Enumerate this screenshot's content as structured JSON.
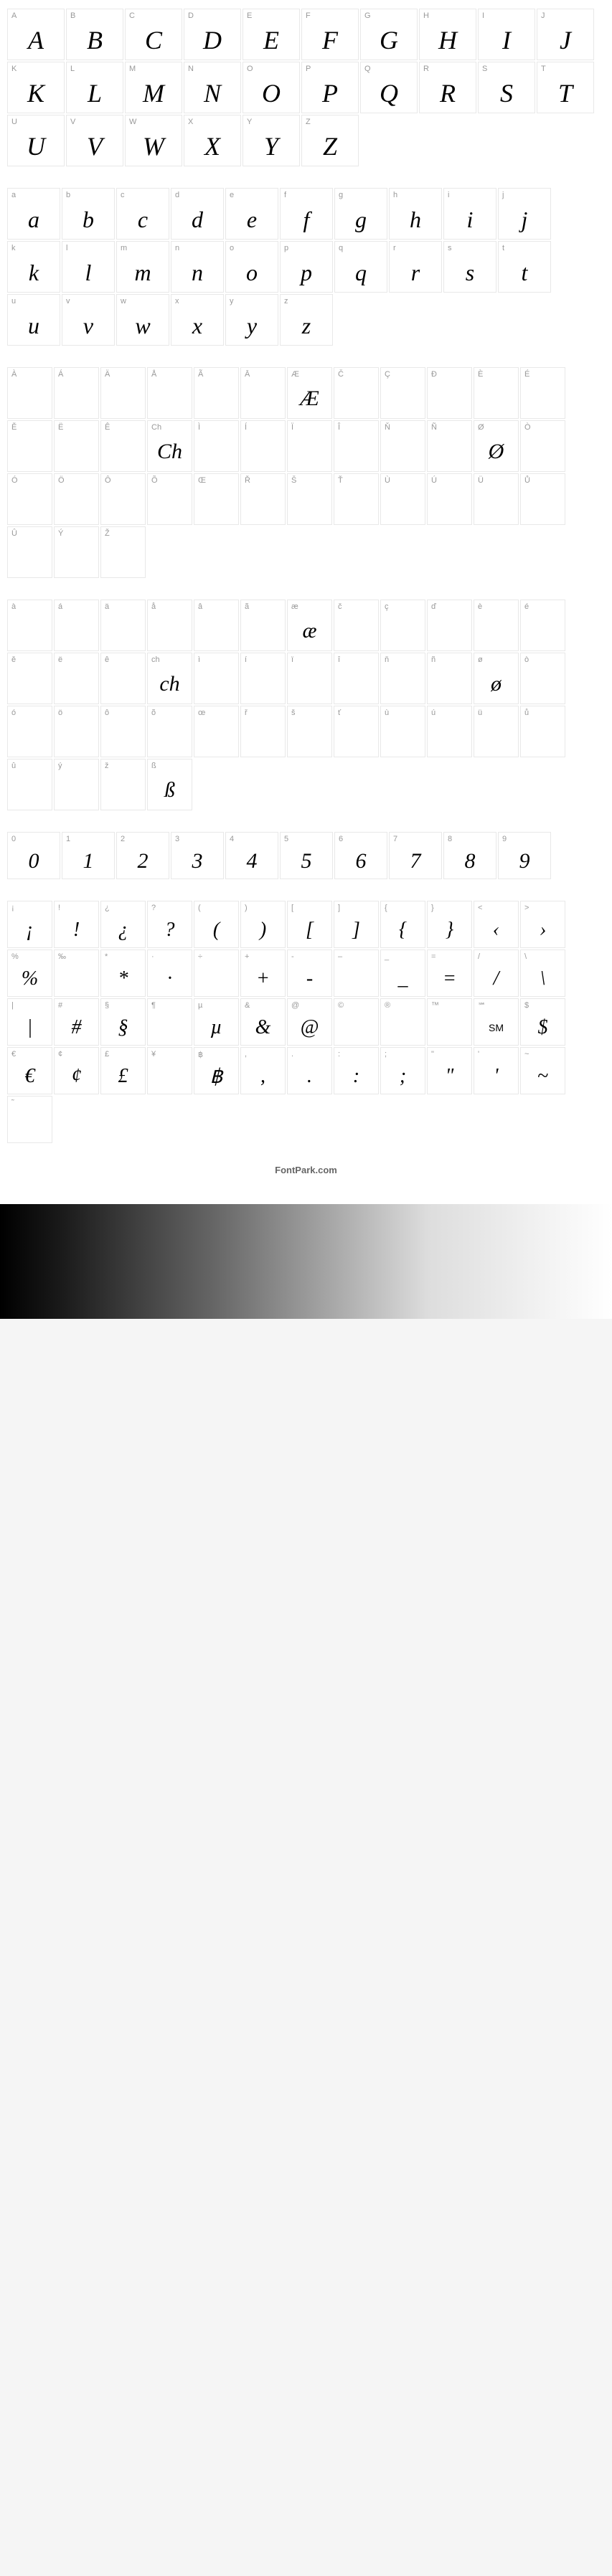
{
  "footer_text": "FontPark.com",
  "uppercase": [
    {
      "label": "A",
      "glyph": "A"
    },
    {
      "label": "B",
      "glyph": "B"
    },
    {
      "label": "C",
      "glyph": "C"
    },
    {
      "label": "D",
      "glyph": "D"
    },
    {
      "label": "E",
      "glyph": "E"
    },
    {
      "label": "F",
      "glyph": "F"
    },
    {
      "label": "G",
      "glyph": "G"
    },
    {
      "label": "H",
      "glyph": "H"
    },
    {
      "label": "I",
      "glyph": "I"
    },
    {
      "label": "J",
      "glyph": "J"
    },
    {
      "label": "K",
      "glyph": "K"
    },
    {
      "label": "L",
      "glyph": "L"
    },
    {
      "label": "M",
      "glyph": "M"
    },
    {
      "label": "N",
      "glyph": "N"
    },
    {
      "label": "O",
      "glyph": "O"
    },
    {
      "label": "P",
      "glyph": "P"
    },
    {
      "label": "Q",
      "glyph": "Q"
    },
    {
      "label": "R",
      "glyph": "R"
    },
    {
      "label": "S",
      "glyph": "S"
    },
    {
      "label": "T",
      "glyph": "T"
    },
    {
      "label": "U",
      "glyph": "U"
    },
    {
      "label": "V",
      "glyph": "V"
    },
    {
      "label": "W",
      "glyph": "W"
    },
    {
      "label": "X",
      "glyph": "X"
    },
    {
      "label": "Y",
      "glyph": "Y"
    },
    {
      "label": "Z",
      "glyph": "Z"
    }
  ],
  "lowercase": [
    {
      "label": "a",
      "glyph": "a"
    },
    {
      "label": "b",
      "glyph": "b"
    },
    {
      "label": "c",
      "glyph": "c"
    },
    {
      "label": "d",
      "glyph": "d"
    },
    {
      "label": "e",
      "glyph": "e"
    },
    {
      "label": "f",
      "glyph": "f"
    },
    {
      "label": "g",
      "glyph": "g"
    },
    {
      "label": "h",
      "glyph": "h"
    },
    {
      "label": "i",
      "glyph": "i"
    },
    {
      "label": "j",
      "glyph": "j"
    },
    {
      "label": "k",
      "glyph": "k"
    },
    {
      "label": "l",
      "glyph": "l"
    },
    {
      "label": "m",
      "glyph": "m"
    },
    {
      "label": "n",
      "glyph": "n"
    },
    {
      "label": "o",
      "glyph": "o"
    },
    {
      "label": "p",
      "glyph": "p"
    },
    {
      "label": "q",
      "glyph": "q"
    },
    {
      "label": "r",
      "glyph": "r"
    },
    {
      "label": "s",
      "glyph": "s"
    },
    {
      "label": "t",
      "glyph": "t"
    },
    {
      "label": "u",
      "glyph": "u"
    },
    {
      "label": "v",
      "glyph": "v"
    },
    {
      "label": "w",
      "glyph": "w"
    },
    {
      "label": "x",
      "glyph": "x"
    },
    {
      "label": "y",
      "glyph": "y"
    },
    {
      "label": "z",
      "glyph": "z"
    }
  ],
  "accented_upper": [
    {
      "label": "À",
      "glyph": "",
      "empty": true
    },
    {
      "label": "Á",
      "glyph": "",
      "empty": true
    },
    {
      "label": "Ä",
      "glyph": "",
      "empty": true
    },
    {
      "label": "Å",
      "glyph": "",
      "empty": true
    },
    {
      "label": "Ã",
      "glyph": "",
      "empty": true
    },
    {
      "label": "Ā",
      "glyph": "",
      "empty": true
    },
    {
      "label": "Æ",
      "glyph": "Æ"
    },
    {
      "label": "Č",
      "glyph": "",
      "empty": true
    },
    {
      "label": "Ç",
      "glyph": "",
      "empty": true
    },
    {
      "label": "Ð",
      "glyph": "",
      "empty": true
    },
    {
      "label": "È",
      "glyph": "",
      "empty": true
    },
    {
      "label": "É",
      "glyph": "",
      "empty": true
    },
    {
      "label": "Ě",
      "glyph": "",
      "empty": true
    },
    {
      "label": "Ë",
      "glyph": "",
      "empty": true
    },
    {
      "label": "Ê",
      "glyph": "",
      "empty": true
    },
    {
      "label": "Ch",
      "glyph": "Ch"
    },
    {
      "label": "Ì",
      "glyph": "",
      "empty": true
    },
    {
      "label": "Í",
      "glyph": "",
      "empty": true
    },
    {
      "label": "Ï",
      "glyph": "",
      "empty": true
    },
    {
      "label": "Î",
      "glyph": "",
      "empty": true
    },
    {
      "label": "Ň",
      "glyph": "",
      "empty": true
    },
    {
      "label": "Ñ",
      "glyph": "",
      "empty": true
    },
    {
      "label": "Ø",
      "glyph": "Ø"
    },
    {
      "label": "Ò",
      "glyph": "",
      "empty": true
    },
    {
      "label": "Ó",
      "glyph": "",
      "empty": true
    },
    {
      "label": "Ö",
      "glyph": "",
      "empty": true
    },
    {
      "label": "Ô",
      "glyph": "",
      "empty": true
    },
    {
      "label": "Õ",
      "glyph": "",
      "empty": true
    },
    {
      "label": "Œ",
      "glyph": "",
      "empty": true
    },
    {
      "label": "Ř",
      "glyph": "",
      "empty": true
    },
    {
      "label": "Š",
      "glyph": "",
      "empty": true
    },
    {
      "label": "Ť",
      "glyph": "",
      "empty": true
    },
    {
      "label": "Ù",
      "glyph": "",
      "empty": true
    },
    {
      "label": "Ú",
      "glyph": "",
      "empty": true
    },
    {
      "label": "Ü",
      "glyph": "",
      "empty": true
    },
    {
      "label": "Ů",
      "glyph": "",
      "empty": true
    },
    {
      "label": "Û",
      "glyph": "",
      "empty": true
    },
    {
      "label": "Ý",
      "glyph": "",
      "empty": true
    },
    {
      "label": "Ž",
      "glyph": "",
      "empty": true
    }
  ],
  "accented_lower": [
    {
      "label": "à",
      "glyph": "",
      "empty": true
    },
    {
      "label": "á",
      "glyph": "",
      "empty": true
    },
    {
      "label": "ä",
      "glyph": "",
      "empty": true
    },
    {
      "label": "å",
      "glyph": "",
      "empty": true
    },
    {
      "label": "â",
      "glyph": "",
      "empty": true
    },
    {
      "label": "ã",
      "glyph": "",
      "empty": true
    },
    {
      "label": "æ",
      "glyph": "æ"
    },
    {
      "label": "č",
      "glyph": "",
      "empty": true
    },
    {
      "label": "ç",
      "glyph": "",
      "empty": true
    },
    {
      "label": "ď",
      "glyph": "",
      "empty": true
    },
    {
      "label": "è",
      "glyph": "",
      "empty": true
    },
    {
      "label": "é",
      "glyph": "",
      "empty": true
    },
    {
      "label": "ě",
      "glyph": "",
      "empty": true
    },
    {
      "label": "ë",
      "glyph": "",
      "empty": true
    },
    {
      "label": "ê",
      "glyph": "",
      "empty": true
    },
    {
      "label": "ch",
      "glyph": "ch"
    },
    {
      "label": "ì",
      "glyph": "",
      "empty": true
    },
    {
      "label": "í",
      "glyph": "",
      "empty": true
    },
    {
      "label": "ï",
      "glyph": "",
      "empty": true
    },
    {
      "label": "î",
      "glyph": "",
      "empty": true
    },
    {
      "label": "ň",
      "glyph": "",
      "empty": true
    },
    {
      "label": "ñ",
      "glyph": "",
      "empty": true
    },
    {
      "label": "ø",
      "glyph": "ø"
    },
    {
      "label": "ò",
      "glyph": "",
      "empty": true
    },
    {
      "label": "ó",
      "glyph": "",
      "empty": true
    },
    {
      "label": "ö",
      "glyph": "",
      "empty": true
    },
    {
      "label": "ô",
      "glyph": "",
      "empty": true
    },
    {
      "label": "õ",
      "glyph": "",
      "empty": true
    },
    {
      "label": "œ",
      "glyph": "",
      "empty": true
    },
    {
      "label": "ř",
      "glyph": "",
      "empty": true
    },
    {
      "label": "š",
      "glyph": "",
      "empty": true
    },
    {
      "label": "ť",
      "glyph": "",
      "empty": true
    },
    {
      "label": "ù",
      "glyph": "",
      "empty": true
    },
    {
      "label": "ú",
      "glyph": "",
      "empty": true
    },
    {
      "label": "ü",
      "glyph": "",
      "empty": true
    },
    {
      "label": "ů",
      "glyph": "",
      "empty": true
    },
    {
      "label": "û",
      "glyph": "",
      "empty": true
    },
    {
      "label": "ý",
      "glyph": "",
      "empty": true
    },
    {
      "label": "ž",
      "glyph": "",
      "empty": true
    },
    {
      "label": "ß",
      "glyph": "ß"
    }
  ],
  "digits": [
    {
      "label": "0",
      "glyph": "0"
    },
    {
      "label": "1",
      "glyph": "1"
    },
    {
      "label": "2",
      "glyph": "2"
    },
    {
      "label": "3",
      "glyph": "3"
    },
    {
      "label": "4",
      "glyph": "4"
    },
    {
      "label": "5",
      "glyph": "5"
    },
    {
      "label": "6",
      "glyph": "6"
    },
    {
      "label": "7",
      "glyph": "7"
    },
    {
      "label": "8",
      "glyph": "8"
    },
    {
      "label": "9",
      "glyph": "9"
    }
  ],
  "symbols": [
    {
      "label": "¡",
      "glyph": "¡"
    },
    {
      "label": "!",
      "glyph": "!"
    },
    {
      "label": "¿",
      "glyph": "¿"
    },
    {
      "label": "?",
      "glyph": "?"
    },
    {
      "label": "(",
      "glyph": "("
    },
    {
      "label": ")",
      "glyph": ")"
    },
    {
      "label": "[",
      "glyph": "["
    },
    {
      "label": "]",
      "glyph": "]"
    },
    {
      "label": "{",
      "glyph": "{"
    },
    {
      "label": "}",
      "glyph": "}"
    },
    {
      "label": "<",
      "glyph": "‹"
    },
    {
      "label": ">",
      "glyph": "›"
    },
    {
      "label": "%",
      "glyph": "%"
    },
    {
      "label": "‰",
      "glyph": "",
      "empty": true
    },
    {
      "label": "*",
      "glyph": "*"
    },
    {
      "label": "·",
      "glyph": "·"
    },
    {
      "label": "÷",
      "glyph": "",
      "empty": true
    },
    {
      "label": "+",
      "glyph": "+"
    },
    {
      "label": "-",
      "glyph": "-"
    },
    {
      "label": "–",
      "glyph": "",
      "empty": true
    },
    {
      "label": "_",
      "glyph": "_"
    },
    {
      "label": "=",
      "glyph": "="
    },
    {
      "label": "/",
      "glyph": "/"
    },
    {
      "label": "\\",
      "glyph": "\\"
    },
    {
      "label": "|",
      "glyph": "|"
    },
    {
      "label": "#",
      "glyph": "#"
    },
    {
      "label": "§",
      "glyph": "§"
    },
    {
      "label": "¶",
      "glyph": "",
      "empty": true
    },
    {
      "label": "µ",
      "glyph": "µ"
    },
    {
      "label": "&",
      "glyph": "&"
    },
    {
      "label": "@",
      "glyph": "@"
    },
    {
      "label": "©",
      "glyph": "",
      "empty": true
    },
    {
      "label": "®",
      "glyph": "",
      "empty": true
    },
    {
      "label": "™",
      "glyph": "",
      "empty": true
    },
    {
      "label": "℠",
      "glyph": "SM",
      "small": true
    },
    {
      "label": "$",
      "glyph": "$"
    },
    {
      "label": "€",
      "glyph": "€"
    },
    {
      "label": "¢",
      "glyph": "¢"
    },
    {
      "label": "£",
      "glyph": "£"
    },
    {
      "label": "¥",
      "glyph": "",
      "empty": true
    },
    {
      "label": "฿",
      "glyph": "฿"
    },
    {
      "label": ",",
      "glyph": ","
    },
    {
      "label": ".",
      "glyph": "."
    },
    {
      "label": ":",
      "glyph": ":"
    },
    {
      "label": ";",
      "glyph": ";"
    },
    {
      "label": "\"",
      "glyph": "\""
    },
    {
      "label": "'",
      "glyph": "'"
    },
    {
      "label": "~",
      "glyph": "~"
    },
    {
      "label": "˜",
      "glyph": "",
      "empty": true
    }
  ],
  "style": {
    "border_color": "#e8e8e8",
    "label_color": "#999999",
    "glyph_color": "#000000",
    "background": "#ffffff",
    "body_background": "#f5f5f5"
  }
}
